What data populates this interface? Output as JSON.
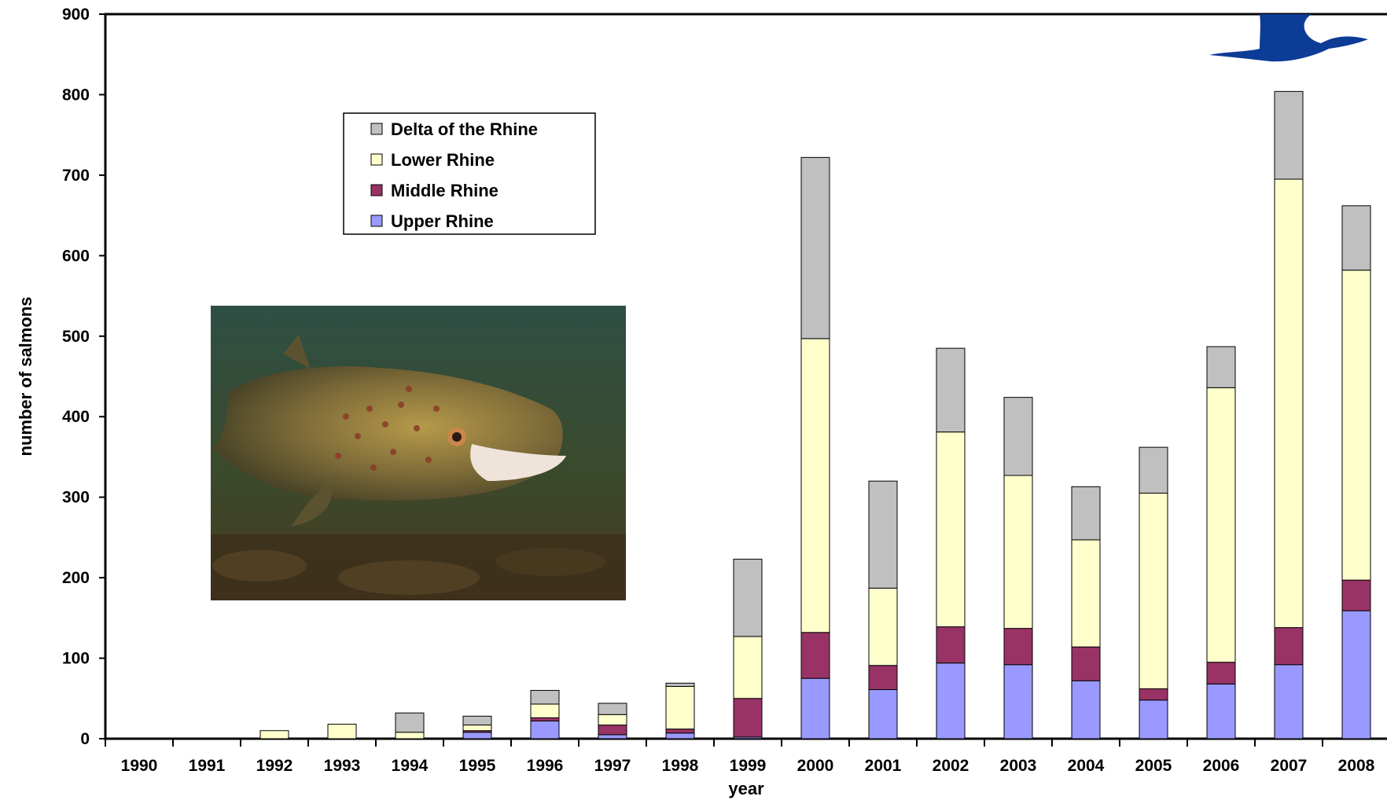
{
  "chart_data": {
    "type": "bar",
    "stacked": true,
    "title": "",
    "xlabel": "year",
    "ylabel": "number of salmons",
    "ylim": [
      0,
      900
    ],
    "yticks": [
      0,
      100,
      200,
      300,
      400,
      500,
      600,
      700,
      800,
      900
    ],
    "grid": false,
    "legend_position": "top-left",
    "categories": [
      "1990",
      "1991",
      "1992",
      "1993",
      "1994",
      "1995",
      "1996",
      "1997",
      "1998",
      "1999",
      "2000",
      "2001",
      "2002",
      "2003",
      "2004",
      "2005",
      "2006",
      "2007",
      "2008"
    ],
    "series": [
      {
        "name": "Upper Rhine",
        "color": "#9999ff",
        "values": [
          0,
          0,
          0,
          0,
          0,
          8,
          22,
          5,
          7,
          2,
          75,
          61,
          94,
          92,
          72,
          48,
          68,
          92,
          159
        ]
      },
      {
        "name": "Middle Rhine",
        "color": "#993366",
        "values": [
          0,
          0,
          0,
          0,
          0,
          2,
          4,
          12,
          5,
          48,
          57,
          30,
          45,
          45,
          42,
          14,
          27,
          46,
          38
        ]
      },
      {
        "name": "Lower Rhine",
        "color": "#ffffcc",
        "values": [
          0,
          0,
          10,
          18,
          8,
          7,
          17,
          13,
          53,
          77,
          365,
          96,
          242,
          190,
          133,
          243,
          341,
          557,
          385
        ]
      },
      {
        "name": "Delta of the Rhine",
        "color": "#c0c0c0",
        "values": [
          0,
          0,
          0,
          0,
          24,
          11,
          17,
          14,
          4,
          96,
          225,
          133,
          104,
          97,
          66,
          57,
          51,
          109,
          80
        ]
      }
    ],
    "legend_order": [
      "Delta of the Rhine",
      "Lower Rhine",
      "Middle Rhine",
      "Upper Rhine"
    ]
  },
  "decorations": {
    "photo": "atlantic-salmon-photo",
    "logo": "blue-bird-logo"
  }
}
